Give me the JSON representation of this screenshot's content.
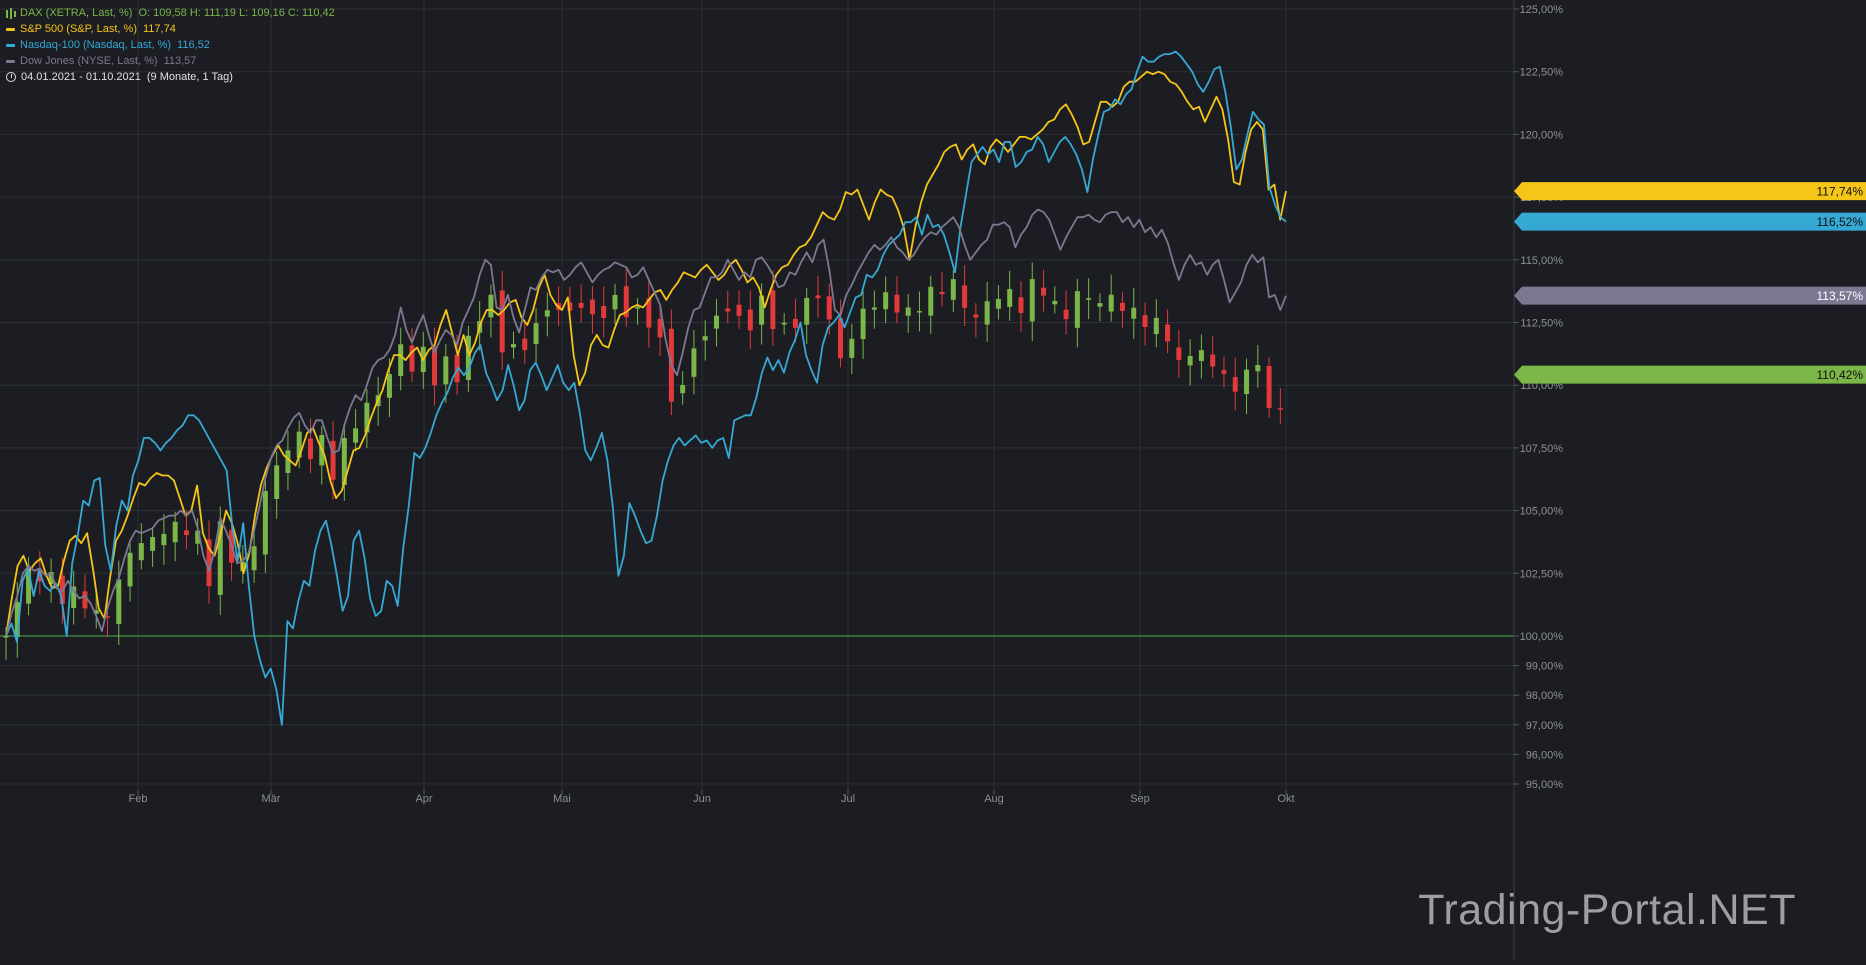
{
  "legend": {
    "dax": {
      "label": "DAX (XETRA, Last, %)",
      "extra": "O: 109,58  H: 111,19  L: 109,16  C: 110,42",
      "color": "#7ab648"
    },
    "sp500": {
      "label": "S&P 500 (S&P, Last, %)",
      "extra": "117,74",
      "color": "#f5c518"
    },
    "nasdaq": {
      "label": "Nasdaq-100 (Nasdaq, Last, %)",
      "extra": "116,52",
      "color": "#35a8d4"
    },
    "dow": {
      "label": "Dow Jones (NYSE, Last, %)",
      "extra": "113,57",
      "color": "#7c7891"
    },
    "range": {
      "dates": "04.01.2021 - 01.10.2021",
      "duration": "(9 Monate, 1 Tag)"
    }
  },
  "watermark": "Trading-Portal.NET",
  "colors": {
    "background": "#1b1d22",
    "grid": "#2d3036",
    "up": "#7ab648",
    "down": "#e23a3a",
    "baseline": "#4caf50"
  },
  "chart_data": {
    "type": "line",
    "x_labels": [
      "Feb",
      "Mär",
      "Apr",
      "Mai",
      "Jun",
      "Jul",
      "Aug",
      "Sep",
      "Okt"
    ],
    "y_ticks": [
      "125,00%",
      "122,50%",
      "120,00%",
      "117,50%",
      "115,00%",
      "112,50%",
      "110,00%",
      "107,50%",
      "105,00%",
      "102,50%",
      "100,00%",
      "99,00%",
      "98,00%",
      "97,00%",
      "96,00%",
      "95,00%"
    ],
    "last_value_labels": [
      {
        "series": "sp500",
        "value": 117.74,
        "text": "117,74%"
      },
      {
        "series": "nasdaq",
        "value": 116.52,
        "text": "116,52%"
      },
      {
        "series": "dow",
        "value": 113.57,
        "text": "113,57%"
      },
      {
        "series": "dax",
        "value": 110.42,
        "text": "110,42%"
      }
    ],
    "baseline": 100,
    "series": [
      {
        "id": "sp500",
        "name": "S&P 500",
        "values": [
          100.0,
          101.5,
          102.8,
          103.2,
          102.6,
          102.9,
          103.1,
          102.4,
          101.9,
          102.0,
          103.0,
          103.8,
          104.0,
          103.7,
          104.1,
          102.7,
          101.1,
          100.7,
          102.4,
          103.8,
          104.2,
          104.8,
          105.5,
          106.1,
          106.0,
          106.3,
          106.5,
          106.4,
          106.4,
          106.2,
          105.5,
          104.8,
          105.0,
          106.0,
          104.1,
          103.5,
          103.2,
          104.0,
          105.0,
          104.5,
          103.7,
          102.5,
          103.3,
          104.8,
          106.0,
          106.7,
          107.2,
          107.6,
          107.2,
          107.0,
          106.8,
          107.4,
          108.1,
          108.3,
          107.7,
          107.2,
          106.2,
          105.5,
          105.8,
          106.6,
          107.4,
          107.5,
          108.0,
          108.7,
          109.3,
          109.8,
          110.6,
          111.2,
          111.2,
          111.0,
          111.3,
          111.5,
          111.0,
          111.4,
          111.6,
          112.4,
          113.0,
          112.1,
          111.2,
          112.0,
          111.2,
          111.7,
          112.5,
          113.0,
          113.0,
          112.8,
          113.0,
          113.3,
          113.4,
          112.7,
          112.4,
          113.0,
          113.9,
          114.4,
          113.6,
          113.2,
          113.0,
          113.5,
          111.2,
          110.0,
          110.5,
          111.6,
          112.0,
          111.6,
          111.5,
          112.2,
          112.8,
          112.9,
          113.1,
          113.2,
          113.1,
          113.4,
          113.7,
          113.8,
          113.4,
          113.8,
          114.1,
          114.5,
          114.4,
          114.3,
          114.6,
          114.8,
          114.5,
          114.2,
          114.4,
          114.8,
          115.0,
          114.6,
          114.1,
          114.3,
          113.9,
          113.1,
          113.8,
          114.4,
          114.7,
          114.8,
          115.2,
          115.5,
          115.6,
          115.9,
          116.4,
          116.9,
          116.7,
          116.6,
          117.0,
          117.7,
          117.6,
          117.8,
          117.2,
          116.6,
          117.3,
          117.8,
          117.6,
          117.5,
          117.0,
          116.3,
          115.0,
          116.3,
          117.3,
          118.0,
          118.4,
          118.8,
          119.3,
          119.5,
          119.6,
          119.0,
          119.4,
          119.6,
          119.0,
          118.8,
          119.5,
          119.8,
          119.6,
          119.3,
          119.6,
          119.9,
          119.9,
          119.8,
          120.0,
          120.2,
          120.5,
          120.6,
          121.0,
          121.2,
          120.8,
          120.3,
          119.6,
          119.7,
          120.5,
          121.3,
          121.3,
          121.1,
          121.3,
          121.9,
          122.1,
          122.1,
          122.3,
          122.5,
          122.4,
          122.5,
          122.4,
          122.1,
          122.0,
          121.7,
          121.3,
          121.0,
          121.1,
          120.5,
          121.0,
          121.5,
          121.0,
          119.8,
          118.1,
          118.0,
          119.3,
          120.2,
          120.5,
          120.2,
          117.8,
          118.0,
          116.6,
          117.74
        ]
      },
      {
        "id": "nasdaq",
        "name": "Nasdaq-100",
        "values": [
          100.0,
          100.5,
          99.8,
          102.2,
          102.7,
          101.6,
          102.6,
          102.0,
          101.8,
          102.1,
          101.6,
          100.0,
          102.9,
          104.0,
          105.4,
          105.2,
          106.2,
          106.3,
          103.6,
          102.6,
          104.4,
          105.4,
          105.0,
          106.4,
          107.0,
          107.9,
          107.9,
          107.7,
          107.4,
          107.7,
          107.9,
          108.2,
          108.4,
          108.8,
          108.8,
          108.6,
          108.2,
          107.8,
          107.4,
          107.0,
          106.6,
          104.4,
          103.0,
          104.5,
          102.0,
          100.0,
          99.2,
          98.6,
          98.9,
          98.2,
          97.0,
          100.6,
          100.3,
          101.4,
          102.2,
          102.0,
          103.4,
          104.2,
          104.6,
          103.6,
          102.4,
          101.0,
          101.6,
          103.8,
          104.2,
          103.1,
          101.5,
          100.8,
          101.0,
          102.2,
          102.0,
          101.2,
          103.5,
          105.2,
          107.3,
          107.1,
          107.5,
          108.1,
          108.8,
          109.3,
          109.7,
          110.3,
          110.7,
          110.4,
          110.7,
          111.3,
          111.6,
          110.5,
          110.0,
          109.4,
          109.8,
          110.8,
          110.0,
          109.0,
          109.4,
          110.6,
          110.9,
          110.4,
          109.8,
          110.3,
          110.8,
          110.1,
          109.8,
          110.1,
          108.9,
          107.4,
          107.0,
          107.5,
          108.1,
          107.0,
          105.1,
          102.4,
          103.2,
          105.3,
          104.8,
          104.2,
          103.7,
          103.8,
          104.8,
          106.2,
          107.0,
          107.6,
          107.9,
          107.6,
          107.8,
          108.0,
          107.7,
          107.8,
          107.5,
          107.8,
          107.9,
          107.1,
          108.6,
          108.7,
          108.8,
          108.8,
          109.5,
          110.5,
          111.1,
          110.6,
          111.0,
          110.5,
          111.3,
          111.8,
          112.5,
          111.2,
          110.6,
          110.1,
          111.6,
          112.3,
          112.5,
          112.8,
          112.3,
          112.9,
          113.5,
          113.6,
          114.4,
          114.3,
          114.6,
          115.2,
          115.6,
          115.8,
          116.0,
          116.5,
          116.5,
          116.7,
          116.0,
          116.8,
          116.3,
          116.4,
          116.0,
          115.3,
          114.5,
          116.3,
          117.6,
          118.9,
          119.2,
          119.5,
          119.2,
          119.4,
          118.9,
          119.7,
          119.7,
          118.7,
          118.9,
          119.3,
          119.4,
          119.9,
          119.6,
          118.9,
          119.3,
          119.7,
          119.9,
          119.6,
          119.2,
          118.6,
          117.7,
          119.0,
          120.0,
          120.9,
          121.0,
          121.4,
          121.2,
          121.6,
          121.8,
          122.5,
          123.1,
          122.9,
          122.9,
          123.1,
          123.2,
          123.2,
          123.3,
          123.1,
          122.8,
          122.5,
          122.0,
          121.7,
          122.1,
          122.6,
          122.7,
          121.7,
          120.3,
          118.6,
          119.0,
          120.0,
          120.9,
          120.6,
          120.4,
          117.9,
          117.2,
          116.7,
          116.52
        ]
      },
      {
        "id": "dow",
        "name": "Dow Jones",
        "values": [
          100.0,
          100.9,
          101.6,
          102.5,
          102.8,
          102.6,
          102.7,
          102.4,
          102.5,
          101.9,
          101.8,
          102.2,
          101.8,
          101.5,
          101.6,
          101.3,
          100.8,
          100.2,
          101.1,
          101.8,
          102.3,
          103.1,
          103.8,
          104.2,
          104.1,
          104.2,
          104.3,
          104.6,
          104.7,
          104.8,
          104.8,
          105.0,
          104.8,
          105.0,
          104.3,
          103.2,
          102.6,
          103.4,
          104.7,
          104.2,
          103.6,
          102.9,
          103.0,
          103.3,
          104.2,
          105.2,
          106.3,
          107.1,
          107.6,
          107.8,
          108.3,
          108.7,
          108.9,
          108.4,
          108.1,
          108.6,
          108.6,
          107.9,
          107.3,
          107.4,
          108.4,
          109.1,
          109.6,
          109.4,
          110.0,
          110.7,
          111.0,
          111.1,
          111.4,
          112.0,
          113.1,
          112.2,
          111.7,
          112.3,
          112.8,
          112.0,
          111.3,
          111.8,
          112.2,
          112.0,
          111.6,
          112.5,
          113.0,
          113.5,
          114.4,
          115.0,
          114.8,
          113.1,
          113.0,
          113.6,
          112.7,
          112.1,
          113.0,
          113.9,
          113.8,
          114.3,
          114.6,
          114.5,
          114.6,
          114.2,
          114.4,
          114.7,
          114.9,
          114.5,
          114.1,
          114.4,
          114.6,
          114.7,
          114.9,
          114.8,
          114.7,
          114.3,
          114.4,
          114.7,
          114.2,
          113.7,
          113.2,
          111.8,
          110.8,
          110.4,
          111.3,
          112.3,
          113.0,
          113.1,
          113.7,
          114.3,
          114.3,
          114.5,
          115.0,
          114.6,
          114.2,
          114.5,
          114.3,
          115.0,
          115.1,
          114.8,
          114.4,
          113.9,
          114.0,
          114.5,
          114.4,
          114.9,
          115.3,
          114.9,
          115.6,
          115.8,
          114.6,
          113.0,
          112.8,
          113.6,
          114.0,
          114.5,
          114.9,
          115.3,
          115.6,
          115.4,
          115.6,
          115.9,
          115.5,
          115.3,
          115.0,
          115.2,
          115.6,
          115.9,
          116.1,
          116.0,
          116.3,
          116.5,
          116.7,
          116.3,
          115.6,
          115.0,
          115.3,
          115.6,
          115.8,
          116.4,
          116.4,
          116.5,
          116.3,
          115.5,
          116.0,
          116.3,
          116.8,
          117.0,
          116.9,
          116.6,
          116.0,
          115.4,
          115.9,
          116.3,
          116.7,
          116.7,
          116.8,
          116.6,
          116.5,
          116.8,
          116.9,
          116.9,
          116.5,
          116.7,
          116.3,
          116.6,
          116.1,
          116.3,
          115.9,
          116.2,
          115.7,
          114.9,
          114.2,
          114.8,
          115.2,
          114.8,
          114.9,
          114.4,
          114.8,
          115.0,
          114.2,
          113.3,
          113.7,
          114.1,
          114.8,
          115.2,
          114.9,
          115.1,
          113.5,
          113.6,
          113.0,
          113.57
        ]
      }
    ]
  }
}
